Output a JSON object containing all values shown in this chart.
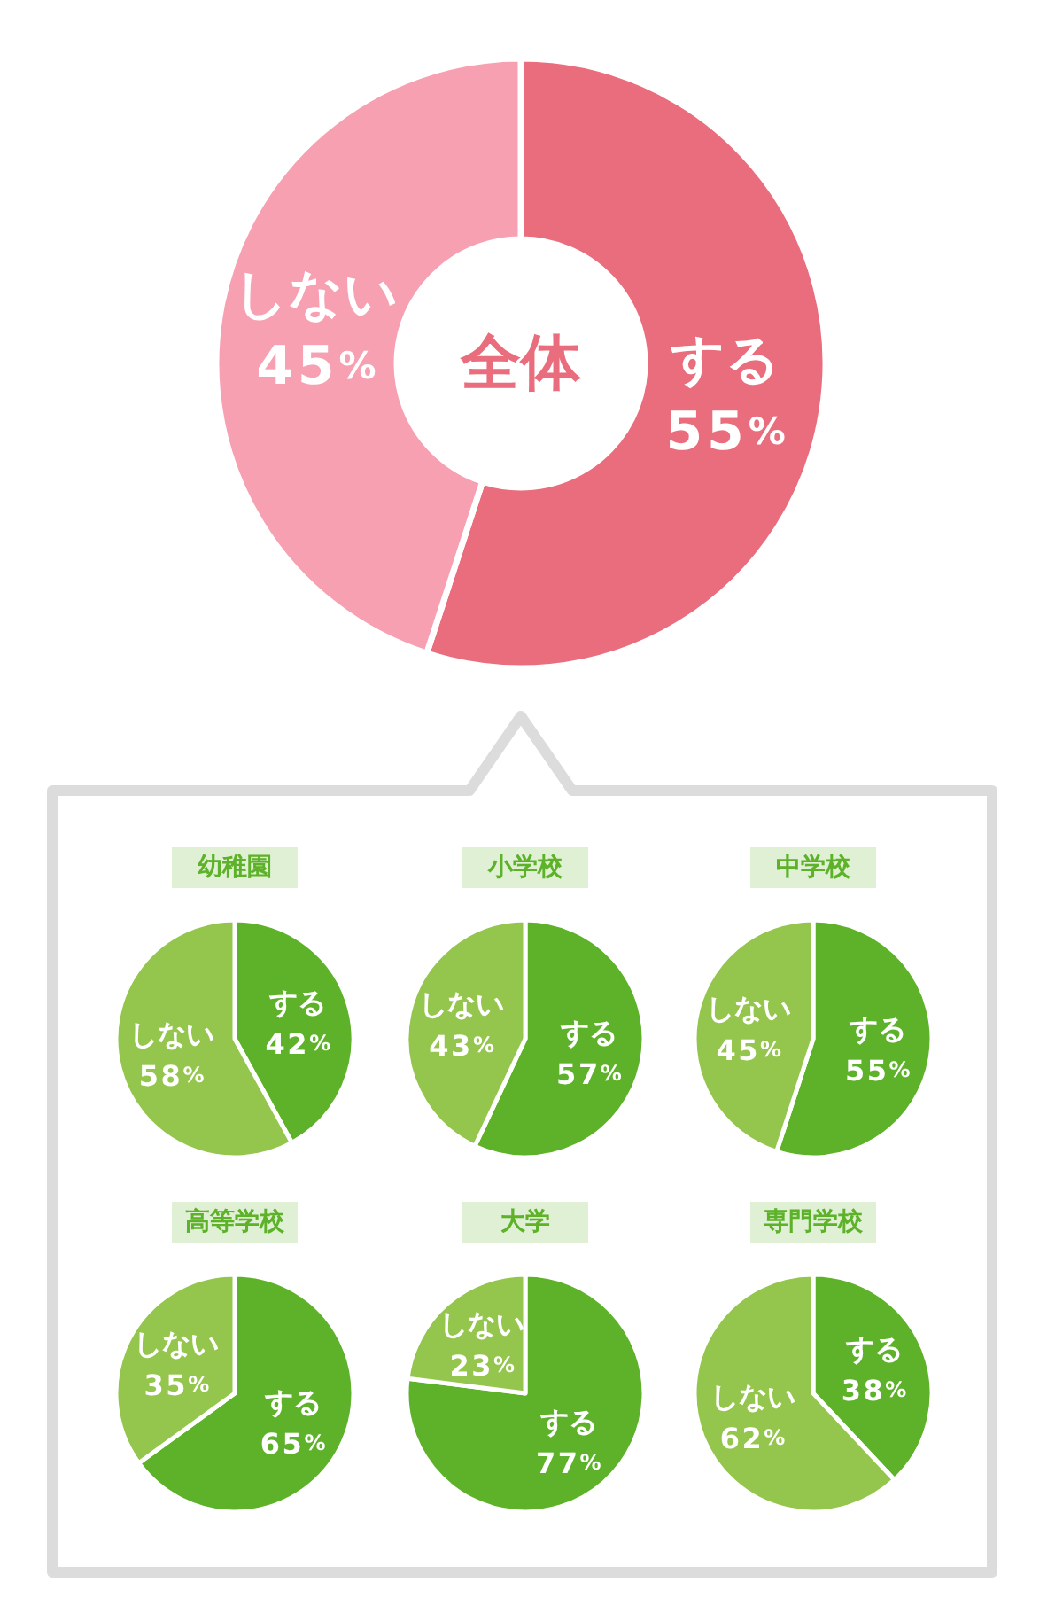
{
  "chart_data": [
    {
      "type": "donut",
      "title": "全体",
      "categories": [
        "する",
        "しない"
      ],
      "values": [
        55,
        45
      ],
      "colors": [
        "#ea6d7d",
        "#f6a0b2"
      ],
      "value_labels": [
        "55%",
        "45%"
      ]
    },
    {
      "type": "pie",
      "title": "幼稚園",
      "categories": [
        "する",
        "しない"
      ],
      "values": [
        42,
        58
      ],
      "colors": [
        "#5db229",
        "#94c54c"
      ],
      "value_labels": [
        "42%",
        "58%"
      ]
    },
    {
      "type": "pie",
      "title": "小学校",
      "categories": [
        "する",
        "しない"
      ],
      "values": [
        57,
        43
      ],
      "colors": [
        "#5db229",
        "#94c54c"
      ],
      "value_labels": [
        "57%",
        "43%"
      ]
    },
    {
      "type": "pie",
      "title": "中学校",
      "categories": [
        "する",
        "しない"
      ],
      "values": [
        55,
        45
      ],
      "colors": [
        "#5db229",
        "#94c54c"
      ],
      "value_labels": [
        "55%",
        "45%"
      ]
    },
    {
      "type": "pie",
      "title": "高等学校",
      "categories": [
        "する",
        "しない"
      ],
      "values": [
        65,
        35
      ],
      "colors": [
        "#5db229",
        "#94c54c"
      ],
      "value_labels": [
        "65%",
        "35%"
      ]
    },
    {
      "type": "pie",
      "title": "大学",
      "categories": [
        "する",
        "しない"
      ],
      "values": [
        77,
        23
      ],
      "colors": [
        "#5db229",
        "#94c54c"
      ],
      "value_labels": [
        "77%",
        "23%"
      ]
    },
    {
      "type": "pie",
      "title": "専門学校",
      "categories": [
        "する",
        "しない"
      ],
      "values": [
        38,
        62
      ],
      "colors": [
        "#5db229",
        "#94c54c"
      ],
      "value_labels": [
        "38%",
        "62%"
      ]
    }
  ]
}
